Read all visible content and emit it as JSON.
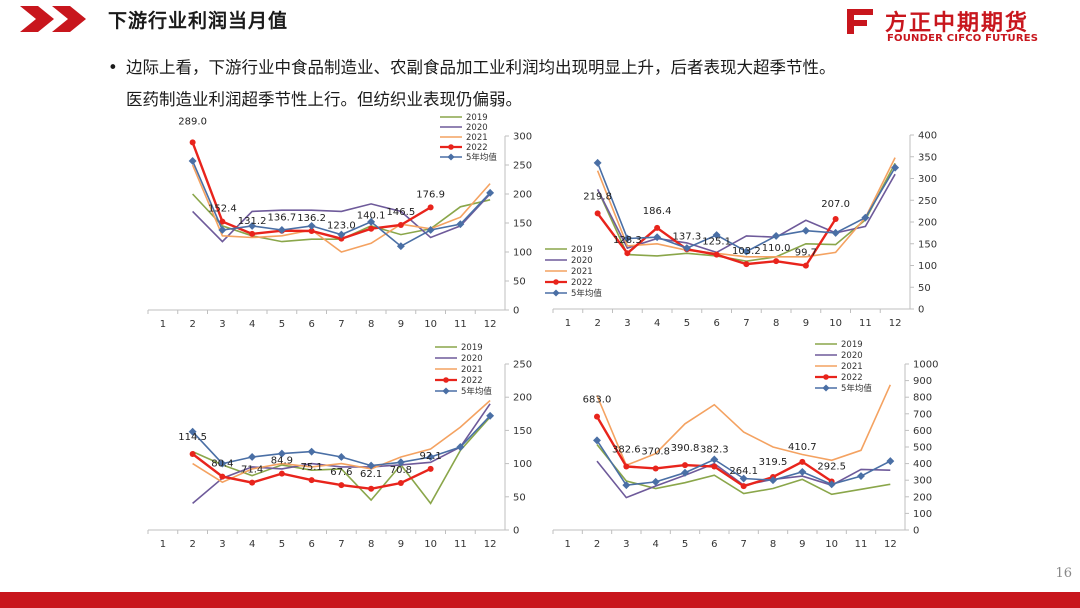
{
  "header": {
    "title": "下游行业利润当月值",
    "logo_cn": "方正中期期货",
    "logo_en": "FOUNDER CIFCO FUTURES",
    "brand_color": "#c8161d"
  },
  "bullet": {
    "line1": "边际上看，下游行业中食品制造业、农副食品加工业利润均出现明显上升，后者表现大超季节性。",
    "line2": "医药制造业利润超季节性上行。但纺织业表现仍偏弱。"
  },
  "page_number": "16",
  "chart_data": [
    {
      "type": "line",
      "x": [
        1,
        2,
        3,
        4,
        5,
        6,
        7,
        8,
        9,
        10,
        11,
        12
      ],
      "ylim": [
        0,
        300
      ],
      "yticks": [
        0,
        50,
        100,
        150,
        200,
        250,
        300
      ],
      "legend_position": "top-right",
      "series": [
        {
          "name": "2019",
          "color": "#8aa64a",
          "values": [
            null,
            200,
            145,
            128,
            118,
            122,
            122,
            145,
            130,
            140,
            178,
            190
          ]
        },
        {
          "name": "2020",
          "color": "#6e5a9a",
          "values": [
            null,
            170,
            118,
            170,
            172,
            172,
            170,
            183,
            170,
            125,
            145,
            200
          ]
        },
        {
          "name": "2021",
          "color": "#f4a261",
          "values": [
            null,
            250,
            128,
            125,
            128,
            138,
            100,
            115,
            148,
            140,
            160,
            218
          ]
        },
        {
          "name": "2022",
          "color": "#e8241c",
          "values": [
            null,
            289.0,
            152.4,
            131.2,
            136.7,
            136.2,
            123.0,
            140.1,
            146.5,
            176.9,
            null,
            null
          ]
        },
        {
          "name": "5年均值",
          "color": "#4a6fa5",
          "values": [
            null,
            257,
            138,
            145,
            138,
            145,
            130,
            152,
            110,
            138,
            148,
            202
          ]
        }
      ],
      "labels": [
        "289.0",
        "152.4",
        "131.2",
        "136.7",
        "136.2",
        "123.0",
        "140.1",
        "146.5",
        "176.9"
      ]
    },
    {
      "type": "line",
      "x": [
        1,
        2,
        3,
        4,
        5,
        6,
        7,
        8,
        9,
        10,
        11,
        12
      ],
      "ylim": [
        0,
        400
      ],
      "yticks": [
        0,
        50,
        100,
        150,
        200,
        250,
        300,
        350,
        400
      ],
      "legend_position": "left",
      "series": [
        {
          "name": "2019",
          "color": "#8aa64a",
          "values": [
            null,
            275,
            125,
            122,
            128,
            122,
            110,
            120,
            150,
            148,
            205,
            335
          ]
        },
        {
          "name": "2020",
          "color": "#6e5a9a",
          "values": [
            null,
            275,
            140,
            162,
            152,
            130,
            168,
            165,
            204,
            175,
            190,
            310
          ]
        },
        {
          "name": "2021",
          "color": "#f4a261",
          "values": [
            null,
            318,
            145,
            150,
            135,
            128,
            120,
            120,
            120,
            130,
            210,
            348
          ]
        },
        {
          "name": "2022",
          "color": "#e8241c",
          "values": [
            null,
            219.8,
            128.3,
            186.4,
            137.3,
            125.1,
            103.2,
            110.0,
            99.7,
            207.0,
            null,
            null
          ]
        },
        {
          "name": "5年均值",
          "color": "#4a6fa5",
          "values": [
            null,
            336,
            162,
            165,
            140,
            170,
            132,
            168,
            180,
            175,
            210,
            325
          ]
        }
      ],
      "labels": [
        "219.8",
        "128.3",
        "186.4",
        "137.3",
        "125.1",
        "103.2",
        "110.0",
        "99.7",
        "207.0"
      ]
    },
    {
      "type": "line",
      "x": [
        1,
        2,
        3,
        4,
        5,
        6,
        7,
        8,
        9,
        10,
        11,
        12
      ],
      "ylim": [
        0,
        250
      ],
      "yticks": [
        0,
        50,
        100,
        150,
        200,
        250
      ],
      "legend_position": "top-right",
      "series": [
        {
          "name": "2019",
          "color": "#8aa64a",
          "values": [
            null,
            118,
            98,
            82,
            98,
            90,
            92,
            45,
            98,
            40,
            120,
            170
          ]
        },
        {
          "name": "2020",
          "color": "#6e5a9a",
          "values": [
            null,
            40,
            78,
            95,
            92,
            100,
            95,
            95,
            98,
            102,
            125,
            190
          ]
        },
        {
          "name": "2021",
          "color": "#f4a261",
          "values": [
            null,
            100,
            72,
            92,
            100,
            95,
            100,
            92,
            110,
            122,
            155,
            195
          ]
        },
        {
          "name": "2022",
          "color": "#e8241c",
          "values": [
            null,
            114.5,
            80.4,
            71.4,
            84.9,
            75.1,
            67.6,
            62.1,
            70.8,
            92.1,
            null,
            null
          ]
        },
        {
          "name": "5年均值",
          "color": "#4a6fa5",
          "values": [
            null,
            148,
            100,
            110,
            115,
            118,
            110,
            97,
            102,
            110,
            125,
            172
          ]
        }
      ],
      "labels": [
        "114.5",
        "80.4",
        "71.4",
        "84.9",
        "75.1",
        "67.6",
        "62.1",
        "70.8",
        "92.1"
      ]
    },
    {
      "type": "line",
      "x": [
        1,
        2,
        3,
        4,
        5,
        6,
        7,
        8,
        9,
        10,
        11,
        12
      ],
      "ylim": [
        0,
        1000
      ],
      "yticks": [
        0,
        100,
        200,
        300,
        400,
        500,
        600,
        700,
        800,
        900,
        1000
      ],
      "legend_position": "top-right",
      "series": [
        {
          "name": "2019",
          "color": "#8aa64a",
          "values": [
            null,
            515,
            295,
            250,
            285,
            330,
            220,
            250,
            305,
            215,
            245,
            275
          ]
        },
        {
          "name": "2020",
          "color": "#6e5a9a",
          "values": [
            null,
            415,
            195,
            265,
            330,
            400,
            270,
            305,
            325,
            270,
            365,
            360
          ]
        },
        {
          "name": "2021",
          "color": "#f4a261",
          "values": [
            null,
            810,
            390,
            460,
            640,
            755,
            590,
            500,
            455,
            420,
            480,
            875
          ]
        },
        {
          "name": "2022",
          "color": "#e8241c",
          "values": [
            null,
            683.0,
            382.6,
            370.8,
            390.8,
            382.3,
            264.1,
            319.5,
            410.7,
            292.5,
            null,
            null
          ]
        },
        {
          "name": "5年均值",
          "color": "#4a6fa5",
          "values": [
            null,
            540,
            270,
            290,
            345,
            425,
            310,
            300,
            350,
            275,
            325,
            415
          ]
        }
      ],
      "labels": [
        "683.0",
        "382.6",
        "370.8",
        "390.8",
        "382.3",
        "264.1",
        "319.5",
        "410.7",
        "292.5"
      ]
    }
  ]
}
